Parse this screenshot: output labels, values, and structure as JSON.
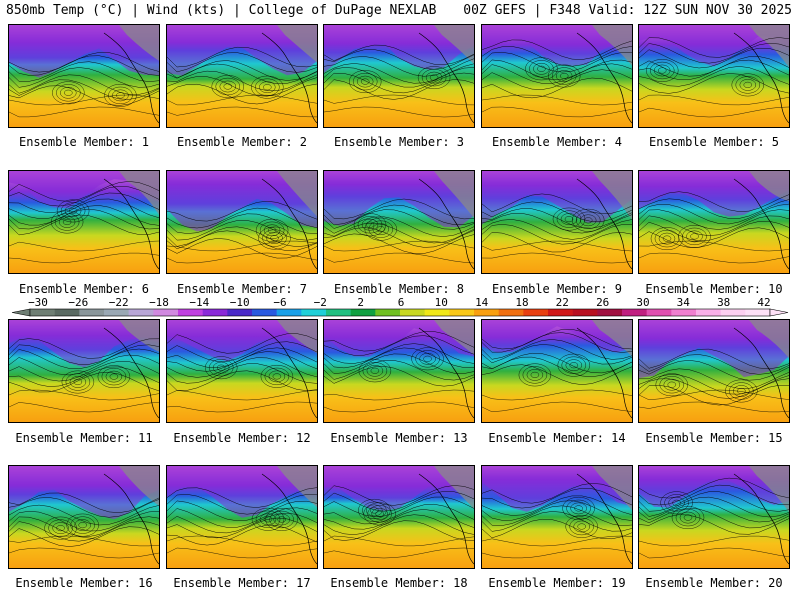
{
  "header": {
    "left": "850mb Temp (°C) | Wind (kts) | College of DuPage NEXLAB",
    "right": "00Z GEFS | F348 Valid: 12Z SUN NOV 30 2025"
  },
  "panels": [
    {
      "label": "Ensemble Member: 1"
    },
    {
      "label": "Ensemble Member: 2"
    },
    {
      "label": "Ensemble Member: 3"
    },
    {
      "label": "Ensemble Member: 4"
    },
    {
      "label": "Ensemble Member: 5"
    },
    {
      "label": "Ensemble Member: 6"
    },
    {
      "label": "Ensemble Member: 7"
    },
    {
      "label": "Ensemble Member: 8"
    },
    {
      "label": "Ensemble Member: 9"
    },
    {
      "label": "Ensemble Member: 10"
    },
    {
      "label": "Ensemble Member: 11"
    },
    {
      "label": "Ensemble Member: 12"
    },
    {
      "label": "Ensemble Member: 13"
    },
    {
      "label": "Ensemble Member: 14"
    },
    {
      "label": "Ensemble Member: 15"
    },
    {
      "label": "Ensemble Member: 16"
    },
    {
      "label": "Ensemble Member: 17"
    },
    {
      "label": "Ensemble Member: 18"
    },
    {
      "label": "Ensemble Member: 19"
    },
    {
      "label": "Ensemble Member: 20"
    }
  ],
  "colorbar": {
    "ticks": [
      "−30",
      "−26",
      "−22",
      "−18",
      "−14",
      "−10",
      "−6",
      "−2",
      "2",
      "6",
      "10",
      "14",
      "18",
      "22",
      "26",
      "30",
      "34",
      "38",
      "42"
    ],
    "colors": [
      "#6f7f74",
      "#5a6a62",
      "#8a969a",
      "#9aa8b4",
      "#b8a6d6",
      "#d18ae0",
      "#c040e0",
      "#8a2ad8",
      "#4a2ac8",
      "#2a5ae0",
      "#1aa0e8",
      "#20d0d8",
      "#20c080",
      "#10a040",
      "#70c020",
      "#c8d820",
      "#f0e818",
      "#f8c818",
      "#f8a010",
      "#f07010",
      "#e84010",
      "#d01818",
      "#b81020",
      "#a01040",
      "#c02080",
      "#e050b0",
      "#f080d0",
      "#f8b0e8",
      "#fcd0f0",
      "#fde0f6"
    ]
  }
}
